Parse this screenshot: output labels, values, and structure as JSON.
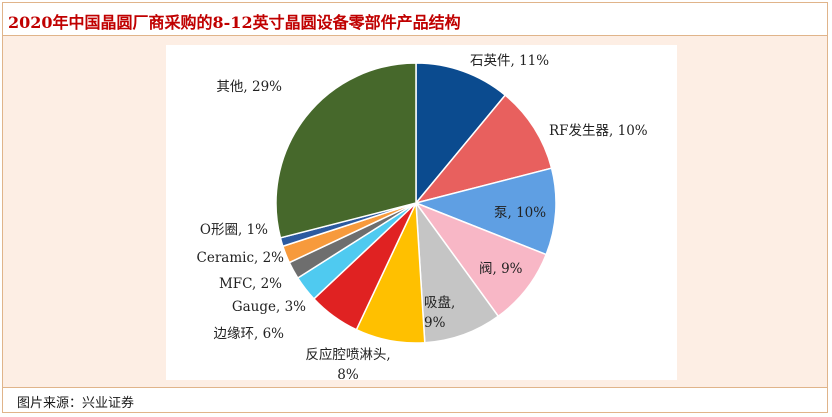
{
  "title": "2020年中国晶圆厂商采购的8-12英寸晶圆设备零部件产品结构",
  "source": "图片来源：兴业证券",
  "chart_data": {
    "type": "pie",
    "title": "",
    "start": "12 o'clock",
    "direction": "clockwise",
    "slices": [
      {
        "label": "石英件",
        "value": 11,
        "value_text": "11%",
        "color": "#0b4b8f"
      },
      {
        "label": "RF发生器",
        "value": 10,
        "value_text": "10%",
        "color": "#e8605e"
      },
      {
        "label": "泵",
        "value": 10,
        "value_text": "10%",
        "color": "#5f9fe3"
      },
      {
        "label": "阀",
        "value": 9,
        "value_text": "9%",
        "color": "#f8b7c6"
      },
      {
        "label": "吸盘",
        "value": 9,
        "value_text": "9%",
        "color": "#c5c5c5"
      },
      {
        "label": "反应腔喷淋头",
        "value": 8,
        "value_text": "8%",
        "color": "#ffc000"
      },
      {
        "label": "边缘环",
        "value": 6,
        "value_text": "6%",
        "color": "#e02222"
      },
      {
        "label": "Gauge",
        "value": 3,
        "value_text": "3%",
        "color": "#4fcaf0"
      },
      {
        "label": "MFC",
        "value": 2,
        "value_text": "2%",
        "color": "#6e6e6e"
      },
      {
        "label": "Ceramic",
        "value": 2,
        "value_text": "2%",
        "color": "#f79a3c"
      },
      {
        "label": "O形圈",
        "value": 1,
        "value_text": "1%",
        "color": "#2c5aa0"
      },
      {
        "label": "其他",
        "value": 29,
        "value_text": "29%",
        "color": "#46682b"
      }
    ]
  }
}
